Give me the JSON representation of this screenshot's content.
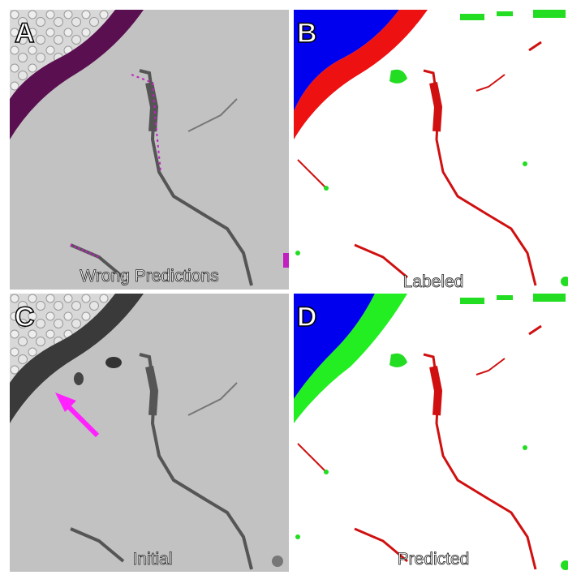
{
  "panels": [
    {
      "letter": "A",
      "caption": "Wrong Predictions"
    },
    {
      "letter": "B",
      "caption": "Labeled"
    },
    {
      "letter": "C",
      "caption": "Initial"
    },
    {
      "letter": "D",
      "caption": "Predicted"
    }
  ]
}
